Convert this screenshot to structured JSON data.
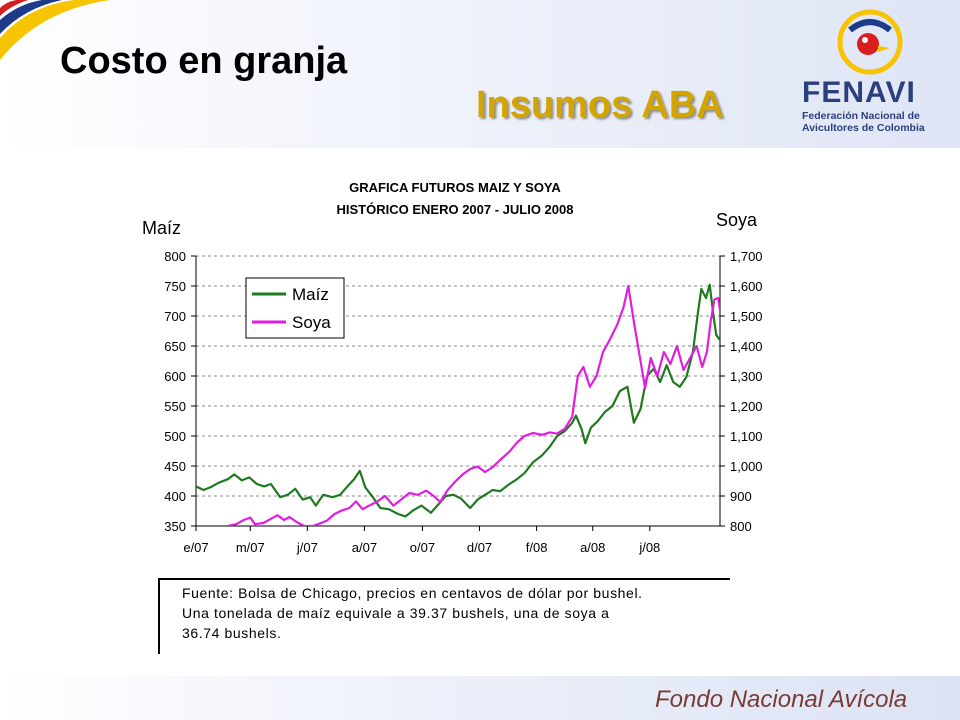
{
  "slide": {
    "title": "Costo en granja",
    "subtitle": "Insumos ABA",
    "footer": "Fondo Nacional Avícola"
  },
  "logo": {
    "name": "FENAVI",
    "caption_line1": "Federación Nacional de",
    "caption_line2": "Avicultores de Colombia",
    "colors": {
      "yellow": "#f6c400",
      "blue": "#1e3a8a",
      "red": "#d81e1e",
      "navy": "#2a3f7c"
    }
  },
  "note": {
    "line1": "Fuente: Bolsa de Chicago, precios en centavos de dólar por bushel.",
    "line2": "Una tonelada de maíz equivale a 39.37 bushels, una de soya a",
    "line3": "36.74 bushels."
  },
  "chart_data": {
    "type": "line",
    "title": "GRAFICA FUTUROS MAIZ Y SOYA",
    "subtitle": "HISTÓRICO ENERO 2007 - JULIO 2008",
    "ylabel_left": "Maíz",
    "ylabel_right": "Soya",
    "ylim_left": [
      350,
      800
    ],
    "yticks_left": [
      350,
      400,
      450,
      500,
      550,
      600,
      650,
      700,
      750,
      800
    ],
    "ytick_labels_left": [
      "350",
      "400",
      "450",
      "500",
      "550",
      "600",
      "650",
      "700",
      "750",
      "800"
    ],
    "ylim_right": [
      800,
      1700
    ],
    "yticks_right": [
      800,
      900,
      1000,
      1100,
      1200,
      1300,
      1400,
      1500,
      1600,
      1700
    ],
    "ytick_labels_right": [
      "800",
      "900",
      "1,000",
      "1,100",
      "1,200",
      "1,300",
      "1,400",
      "1,500",
      "1,600",
      "1,700"
    ],
    "xlim": [
      "2007-01-02",
      "2008-07-15"
    ],
    "x_tick_labels": [
      "e/07",
      "m/07",
      "j/07",
      "a/07",
      "o/07",
      "d/07",
      "f/08",
      "a/08",
      "j/08"
    ],
    "x_tick_dates": [
      "2007-01-01",
      "2007-03-01",
      "2007-05-01",
      "2007-07-01",
      "2007-09-01",
      "2007-11-01",
      "2008-01-01",
      "2008-03-01",
      "2008-05-01"
    ],
    "grid": true,
    "legend_position": "top-left",
    "series": [
      {
        "name": "Maíz",
        "axis": "left",
        "color": "#1f7a1f",
        "points": [
          [
            "2007-01-02",
            416
          ],
          [
            "2007-01-10",
            410
          ],
          [
            "2007-01-18",
            415
          ],
          [
            "2007-01-26",
            422
          ],
          [
            "2007-02-05",
            428
          ],
          [
            "2007-02-12",
            436
          ],
          [
            "2007-02-20",
            426
          ],
          [
            "2007-02-28",
            431
          ],
          [
            "2007-03-08",
            420
          ],
          [
            "2007-03-16",
            416
          ],
          [
            "2007-03-23",
            420
          ],
          [
            "2007-04-02",
            398
          ],
          [
            "2007-04-10",
            402
          ],
          [
            "2007-04-18",
            412
          ],
          [
            "2007-04-26",
            394
          ],
          [
            "2007-05-04",
            398
          ],
          [
            "2007-05-10",
            384
          ],
          [
            "2007-05-18",
            402
          ],
          [
            "2007-05-28",
            398
          ],
          [
            "2007-06-05",
            402
          ],
          [
            "2007-06-14",
            418
          ],
          [
            "2007-06-20",
            428
          ],
          [
            "2007-06-26",
            442
          ],
          [
            "2007-07-02",
            414
          ],
          [
            "2007-07-10",
            398
          ],
          [
            "2007-07-18",
            380
          ],
          [
            "2007-07-27",
            378
          ],
          [
            "2007-08-06",
            370
          ],
          [
            "2007-08-14",
            366
          ],
          [
            "2007-08-22",
            376
          ],
          [
            "2007-08-31",
            384
          ],
          [
            "2007-09-10",
            372
          ],
          [
            "2007-09-18",
            386
          ],
          [
            "2007-09-26",
            400
          ],
          [
            "2007-10-04",
            402
          ],
          [
            "2007-10-12",
            396
          ],
          [
            "2007-10-22",
            380
          ],
          [
            "2007-10-30",
            394
          ],
          [
            "2007-11-07",
            402
          ],
          [
            "2007-11-15",
            410
          ],
          [
            "2007-11-23",
            408
          ],
          [
            "2007-12-03",
            420
          ],
          [
            "2007-12-11",
            428
          ],
          [
            "2007-12-19",
            438
          ],
          [
            "2007-12-28",
            456
          ],
          [
            "2008-01-07",
            468
          ],
          [
            "2008-01-15",
            482
          ],
          [
            "2008-01-23",
            500
          ],
          [
            "2008-01-31",
            508
          ],
          [
            "2008-02-08",
            522
          ],
          [
            "2008-02-12",
            534
          ],
          [
            "2008-02-18",
            512
          ],
          [
            "2008-02-22",
            488
          ],
          [
            "2008-02-28",
            514
          ],
          [
            "2008-03-06",
            524
          ],
          [
            "2008-03-14",
            540
          ],
          [
            "2008-03-22",
            550
          ],
          [
            "2008-03-30",
            575
          ],
          [
            "2008-04-07",
            582
          ],
          [
            "2008-04-14",
            522
          ],
          [
            "2008-04-21",
            545
          ],
          [
            "2008-04-28",
            600
          ],
          [
            "2008-05-05",
            612
          ],
          [
            "2008-05-12",
            590
          ],
          [
            "2008-05-19",
            618
          ],
          [
            "2008-05-26",
            590
          ],
          [
            "2008-06-02",
            582
          ],
          [
            "2008-06-09",
            598
          ],
          [
            "2008-06-16",
            640
          ],
          [
            "2008-06-21",
            700
          ],
          [
            "2008-06-25",
            745
          ],
          [
            "2008-06-30",
            730
          ],
          [
            "2008-07-04",
            752
          ],
          [
            "2008-07-08",
            700
          ],
          [
            "2008-07-11",
            668
          ],
          [
            "2008-07-15",
            660
          ]
        ]
      },
      {
        "name": "Soya",
        "axis": "right",
        "color": "#e01ee0",
        "points": [
          [
            "2007-02-05",
            800
          ],
          [
            "2007-02-14",
            806
          ],
          [
            "2007-02-22",
            820
          ],
          [
            "2007-03-01",
            828
          ],
          [
            "2007-03-06",
            806
          ],
          [
            "2007-03-15",
            810
          ],
          [
            "2007-03-23",
            824
          ],
          [
            "2007-03-30",
            836
          ],
          [
            "2007-04-06",
            820
          ],
          [
            "2007-04-12",
            830
          ],
          [
            "2007-04-20",
            812
          ],
          [
            "2007-04-28",
            800
          ],
          [
            "2007-05-07",
            800
          ],
          [
            "2007-05-14",
            808
          ],
          [
            "2007-05-22",
            818
          ],
          [
            "2007-05-30",
            840
          ],
          [
            "2007-06-07",
            852
          ],
          [
            "2007-06-15",
            860
          ],
          [
            "2007-06-22",
            882
          ],
          [
            "2007-06-29",
            856
          ],
          [
            "2007-07-06",
            868
          ],
          [
            "2007-07-14",
            880
          ],
          [
            "2007-07-23",
            900
          ],
          [
            "2007-08-01",
            868
          ],
          [
            "2007-08-10",
            890
          ],
          [
            "2007-08-18",
            910
          ],
          [
            "2007-08-27",
            904
          ],
          [
            "2007-09-05",
            918
          ],
          [
            "2007-09-13",
            900
          ],
          [
            "2007-09-20",
            880
          ],
          [
            "2007-09-28",
            920
          ],
          [
            "2007-10-06",
            948
          ],
          [
            "2007-10-14",
            972
          ],
          [
            "2007-10-22",
            990
          ],
          [
            "2007-10-30",
            998
          ],
          [
            "2007-11-07",
            980
          ],
          [
            "2007-11-15",
            996
          ],
          [
            "2007-11-23",
            1020
          ],
          [
            "2007-12-03",
            1048
          ],
          [
            "2007-12-11",
            1078
          ],
          [
            "2007-12-19",
            1100
          ],
          [
            "2007-12-28",
            1110
          ],
          [
            "2008-01-07",
            1104
          ],
          [
            "2008-01-15",
            1112
          ],
          [
            "2008-01-23",
            1108
          ],
          [
            "2008-01-31",
            1124
          ],
          [
            "2008-02-08",
            1164
          ],
          [
            "2008-02-14",
            1300
          ],
          [
            "2008-02-20",
            1330
          ],
          [
            "2008-02-27",
            1264
          ],
          [
            "2008-03-05",
            1300
          ],
          [
            "2008-03-12",
            1380
          ],
          [
            "2008-03-19",
            1420
          ],
          [
            "2008-03-27",
            1470
          ],
          [
            "2008-04-03",
            1530
          ],
          [
            "2008-04-08",
            1600
          ],
          [
            "2008-04-14",
            1480
          ],
          [
            "2008-04-20",
            1370
          ],
          [
            "2008-04-26",
            1260
          ],
          [
            "2008-05-02",
            1360
          ],
          [
            "2008-05-09",
            1300
          ],
          [
            "2008-05-16",
            1380
          ],
          [
            "2008-05-23",
            1340
          ],
          [
            "2008-05-30",
            1400
          ],
          [
            "2008-06-06",
            1320
          ],
          [
            "2008-06-13",
            1360
          ],
          [
            "2008-06-20",
            1400
          ],
          [
            "2008-06-26",
            1330
          ],
          [
            "2008-07-01",
            1380
          ],
          [
            "2008-07-05",
            1480
          ],
          [
            "2008-07-09",
            1555
          ],
          [
            "2008-07-13",
            1560
          ],
          [
            "2008-07-15",
            1520
          ]
        ]
      }
    ]
  }
}
